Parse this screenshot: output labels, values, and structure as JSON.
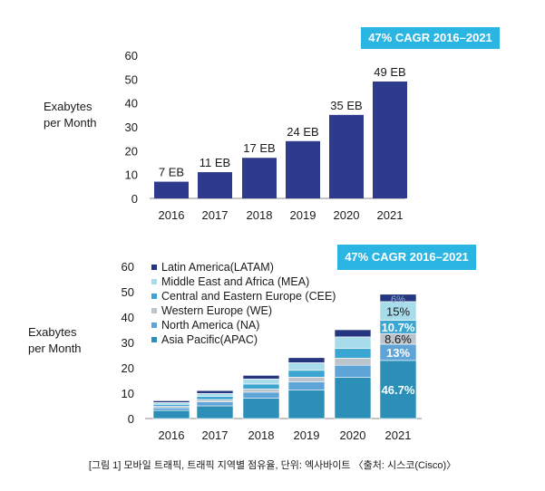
{
  "caption": "[그림 1] 모바일 트래픽, 트래픽 지역별 점유율, 단위: 엑사바이트 〈출처: 시스코(Cisco)〉",
  "chart_data": [
    {
      "type": "bar",
      "badge": "47% CAGR 2016–2021",
      "ylabel": [
        "Exabytes",
        "per Month"
      ],
      "categories": [
        "2016",
        "2017",
        "2018",
        "2019",
        "2020",
        "2021"
      ],
      "values": [
        7,
        11,
        17,
        24,
        35,
        49
      ],
      "data_labels": [
        "7 EB",
        "11 EB",
        "17 EB",
        "24 EB",
        "35 EB",
        "49 EB"
      ],
      "ylim": [
        0,
        60
      ],
      "yticks": [
        "0",
        "10",
        "20",
        "30",
        "40",
        "50",
        "60"
      ],
      "color": "#2e3a8c",
      "badge_color": "#2ab5e3"
    },
    {
      "type": "stacked-bar",
      "badge": "47% CAGR 2016–2021",
      "ylabel": [
        "Exabytes",
        "per Month"
      ],
      "categories": [
        "2016",
        "2017",
        "2018",
        "2019",
        "2020",
        "2021"
      ],
      "ylim": [
        0,
        60
      ],
      "yticks": [
        "0",
        "10",
        "20",
        "30",
        "40",
        "50",
        "60"
      ],
      "legend_position": "top-left",
      "series": [
        {
          "name": "Asia Pacific(APAC)",
          "color": "#2b8fb7",
          "values": [
            3.2,
            5.0,
            8.0,
            11.2,
            16.3,
            22.9
          ]
        },
        {
          "name": "North America (NA)",
          "color": "#5fa4d6",
          "values": [
            1.0,
            1.6,
            2.4,
            3.3,
            4.7,
            6.4
          ]
        },
        {
          "name": "Western Europe (WE)",
          "color": "#bcc4cc",
          "values": [
            0.6,
            0.9,
            1.3,
            1.8,
            2.8,
            4.2
          ]
        },
        {
          "name": "Central and Eastern Europe (CEE)",
          "color": "#3aa6d1",
          "values": [
            0.8,
            1.2,
            1.9,
            2.7,
            3.8,
            5.2
          ]
        },
        {
          "name": "Middle East and Africa (MEA)",
          "color": "#a8dcea",
          "values": [
            0.7,
            1.2,
            2.0,
            3.0,
            4.6,
            7.4
          ]
        },
        {
          "name": "Latin America(LATAM)",
          "color": "#26357f",
          "values": [
            0.7,
            1.1,
            1.4,
            2.0,
            2.8,
            2.9
          ]
        }
      ],
      "segment_labels_2021": [
        "46.7%",
        "13%",
        "8.6%",
        "10.7%",
        "15%",
        "6%"
      ],
      "badge_color": "#2ab5e3"
    }
  ]
}
